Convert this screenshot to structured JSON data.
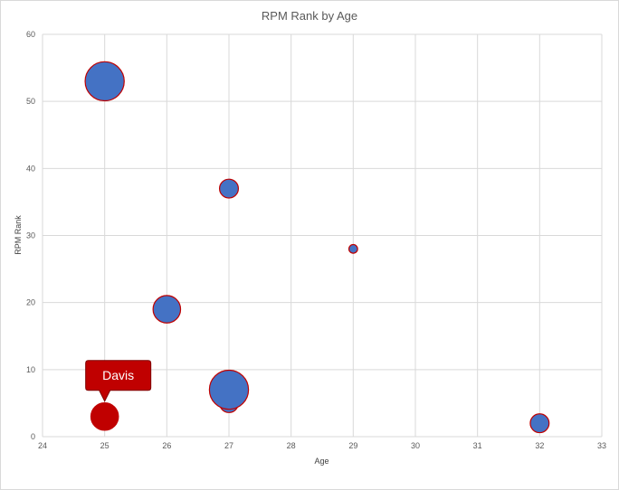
{
  "chart_data": {
    "type": "scatter",
    "subtype": "bubble",
    "title": "RPM Rank by Age",
    "xlabel": "Age",
    "ylabel": "RPM Rank",
    "xlim": [
      24,
      33
    ],
    "ylim": [
      0,
      60
    ],
    "x_ticks": [
      "24",
      "25",
      "26",
      "27",
      "28",
      "29",
      "30",
      "31",
      "32",
      "33"
    ],
    "y_ticks": [
      "0",
      "10",
      "20",
      "30",
      "40",
      "50",
      "60"
    ],
    "grid": true,
    "legend": "none",
    "points": [
      {
        "x": 25,
        "y": 53,
        "size": 2.7,
        "color": "#4472c4"
      },
      {
        "x": 27,
        "y": 37,
        "size": 1.3,
        "color": "#4472c4"
      },
      {
        "x": 29,
        "y": 28,
        "size": 0.6,
        "color": "#4472c4"
      },
      {
        "x": 26,
        "y": 19,
        "size": 1.9,
        "color": "#4472c4"
      },
      {
        "x": 27,
        "y": 5,
        "size": 1.3,
        "color": "#4472c4"
      },
      {
        "x": 27,
        "y": 7,
        "size": 2.7,
        "color": "#4472c4"
      },
      {
        "x": 25,
        "y": 3,
        "size": 1.9,
        "color": "#c00000"
      },
      {
        "x": 32,
        "y": 2,
        "size": 1.3,
        "color": "#4472c4"
      }
    ],
    "callouts": [
      {
        "label": "Davis",
        "x": 25,
        "y": 3,
        "color": "#c00000"
      }
    ],
    "colors": {
      "bubble_fill": "#4472c4",
      "bubble_border": "#c00000",
      "highlight_fill": "#c00000",
      "gridline": "#d9d9d9"
    }
  }
}
